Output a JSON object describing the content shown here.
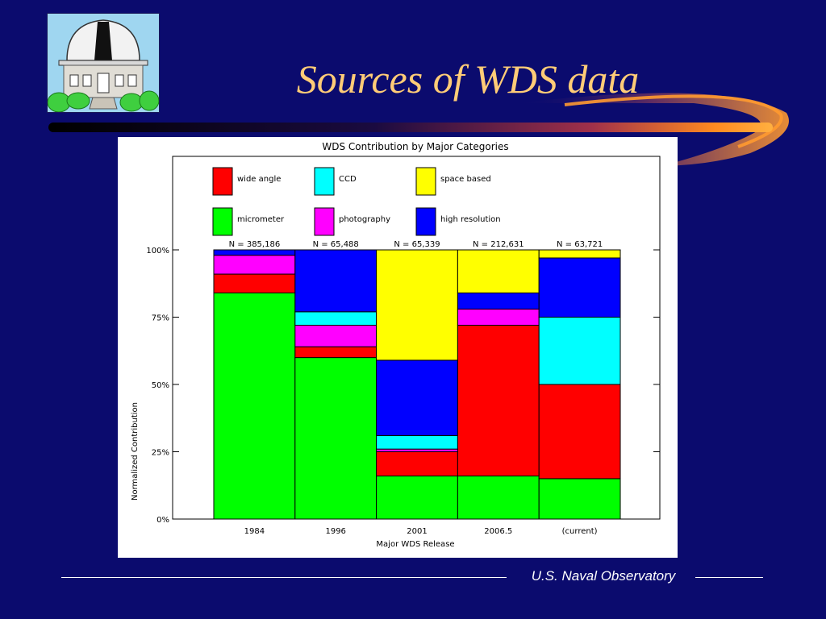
{
  "slide": {
    "title": "Sources of WDS data",
    "footer": "U.S. Naval Observatory",
    "colors": {
      "background": "#0b0b6e",
      "title": "#ffcc77"
    }
  },
  "logo": {
    "icon": "observatory-building-icon"
  },
  "chart_data": {
    "type": "bar",
    "stacked": true,
    "title": "WDS Contribution by Major Categories",
    "xlabel": "Major WDS Release",
    "ylabel": "Normalized Contribution",
    "ylim": [
      0,
      100
    ],
    "yticks": [
      "0%",
      "25%",
      "50%",
      "75%",
      "100%"
    ],
    "ytick_values": [
      0,
      25,
      50,
      75,
      100
    ],
    "categories": [
      "1984",
      "1996",
      "2001",
      "2006.5",
      "(current)"
    ],
    "n_labels": [
      "N = 385,186",
      "N = 65,488",
      "N = 65,339",
      "N = 212,631",
      "N = 63,721"
    ],
    "legend_position": "top",
    "series": [
      {
        "name": "micrometer",
        "color": "#00ff00",
        "values": [
          84,
          60,
          16,
          16,
          15
        ]
      },
      {
        "name": "wide angle",
        "color": "#ff0000",
        "values": [
          7,
          4,
          9,
          56,
          35
        ]
      },
      {
        "name": "photography",
        "color": "#ff00ff",
        "values": [
          7,
          8,
          1,
          6,
          0
        ]
      },
      {
        "name": "CCD",
        "color": "#00ffff",
        "values": [
          0,
          5,
          5,
          0,
          25
        ]
      },
      {
        "name": "high resolution",
        "color": "#0000ff",
        "values": [
          2,
          23,
          28,
          6,
          22
        ]
      },
      {
        "name": "space based",
        "color": "#ffff00",
        "values": [
          0,
          0,
          41,
          16,
          3
        ]
      }
    ],
    "legend_order": [
      "wide angle",
      "CCD",
      "space based",
      "micrometer",
      "photography",
      "high resolution"
    ]
  }
}
